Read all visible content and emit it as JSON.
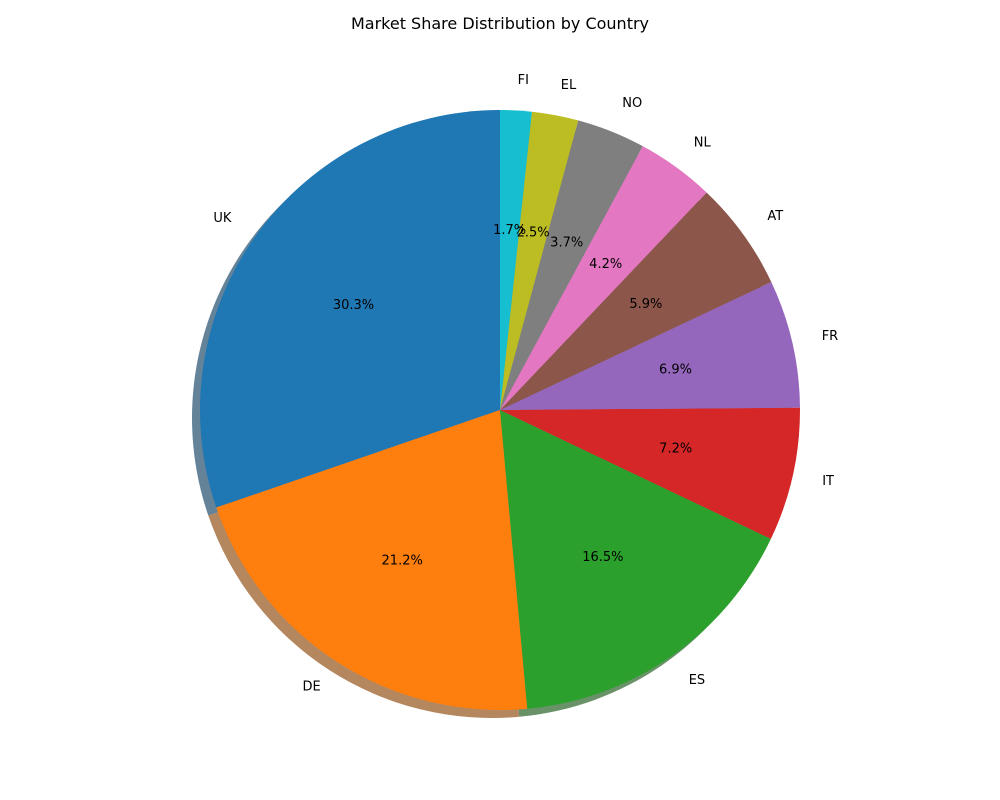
{
  "chart_data": {
    "type": "pie",
    "title": "Market Share Distribution by Country",
    "start_angle_deg": 90,
    "direction": "counterclockwise",
    "shadow": true,
    "slices": [
      {
        "label": "UK",
        "value": 30.3,
        "pct_label": "30.3%",
        "color": "#1f77b4"
      },
      {
        "label": "DE",
        "value": 21.2,
        "pct_label": "21.2%",
        "color": "#ff7f0e"
      },
      {
        "label": "ES",
        "value": 16.5,
        "pct_label": "16.5%",
        "color": "#2ca02c"
      },
      {
        "label": "IT",
        "value": 7.2,
        "pct_label": "7.2%",
        "color": "#d62728"
      },
      {
        "label": "FR",
        "value": 6.9,
        "pct_label": "6.9%",
        "color": "#9467bd"
      },
      {
        "label": "AT",
        "value": 5.9,
        "pct_label": "5.9%",
        "color": "#8c564b"
      },
      {
        "label": "NL",
        "value": 4.2,
        "pct_label": "4.2%",
        "color": "#e377c2"
      },
      {
        "label": "NO",
        "value": 3.7,
        "pct_label": "3.7%",
        "color": "#7f7f7f"
      },
      {
        "label": "EL",
        "value": 2.5,
        "pct_label": "2.5%",
        "color": "#bcbd22"
      },
      {
        "label": "FI",
        "value": 1.7,
        "pct_label": "1.7%",
        "color": "#17becf"
      }
    ]
  }
}
